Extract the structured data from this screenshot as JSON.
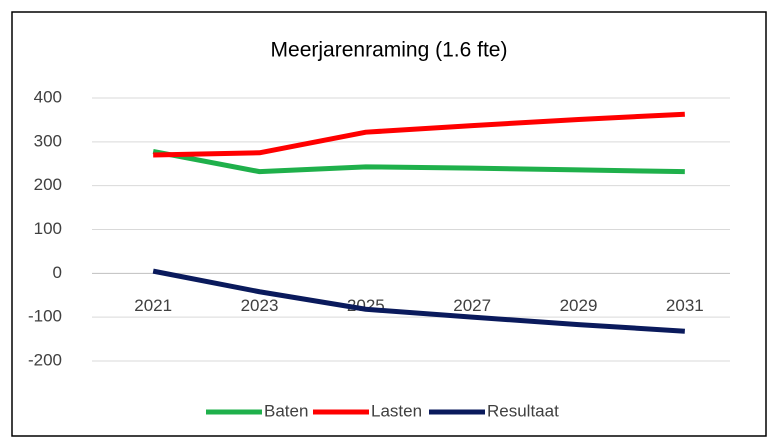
{
  "chart_data": {
    "type": "line",
    "title": "Meerjarenraming  (1.6 fte)",
    "categories": [
      "2021",
      "2023",
      "2025",
      "2027",
      "2029",
      "2031"
    ],
    "series": [
      {
        "name": "Baten",
        "color": "#1fb04b",
        "values": [
          278,
          232,
          243,
          240,
          236,
          232
        ]
      },
      {
        "name": "Lasten",
        "color": "#ff0000",
        "values": [
          270,
          275,
          322,
          337,
          351,
          363
        ]
      },
      {
        "name": "Resultaat",
        "color": "#0a1a5c",
        "values": [
          5,
          -42,
          -82,
          -100,
          -117,
          -132
        ]
      }
    ],
    "ylim": [
      -200,
      400
    ],
    "yticks": [
      -200,
      -100,
      0,
      100,
      200,
      300,
      400
    ],
    "grid": true,
    "legend": "bottom"
  }
}
